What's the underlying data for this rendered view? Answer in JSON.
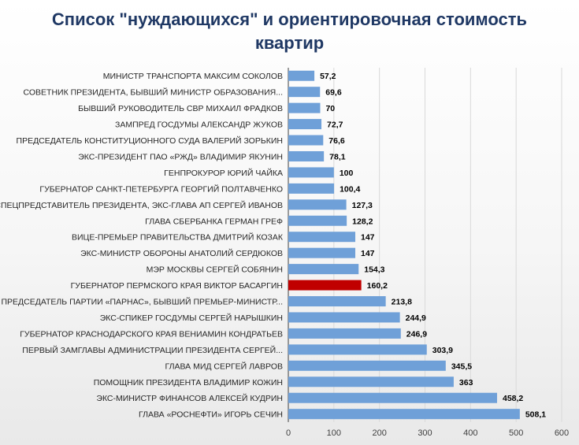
{
  "chart_data": {
    "type": "bar",
    "orientation": "horizontal",
    "title_lines": [
      "Список \"нуждающихся\" и ориентировочная стоимость",
      "квартир"
    ],
    "categories": [
      "МИНИСТР ТРАНСПОРТА МАКСИМ СОКОЛОВ",
      "СОВЕТНИК ПРЕЗИДЕНТА, БЫВШИЙ МИНИСТР ОБРАЗОВАНИЯ...",
      "БЫВШИЙ РУКОВОДИТЕЛЬ СВР МИХАИЛ ФРАДКОВ",
      "ЗАМПРЕД ГОСДУМЫ АЛЕКСАНДР ЖУКОВ",
      "ПРЕДСЕДАТЕЛЬ КОНСТИТУЦИОННОГО СУДА ВАЛЕРИЙ ЗОРЬКИН",
      "ЭКС-ПРЕЗИДЕНТ ПАО «РЖД» ВЛАДИМИР ЯКУНИН",
      "ГЕНПРОКУРОР ЮРИЙ ЧАЙКА",
      "ГУБЕРНАТОР САНКТ-ПЕТЕРБУРГА ГЕОРГИЙ ПОЛТАВЧЕНКО",
      "СПЕЦПРЕДСТАВИТЕЛЬ ПРЕЗИДЕНТА, ЭКС-ГЛАВА АП СЕРГЕЙ ИВАНОВ",
      "ГЛАВА СБЕРБАНКА ГЕРМАН ГРЕФ",
      "ВИЦЕ-ПРЕМЬЕР ПРАВИТЕЛЬСТВА ДМИТРИЙ КОЗАК",
      "ЭКС-МИНИСТР ОБОРОНЫ АНАТОЛИЙ СЕРДЮКОВ",
      "МЭР МОСКВЫ СЕРГЕЙ СОБЯНИН",
      "ГУБЕРНАТОР ПЕРМСКОГО КРАЯ ВИКТОР БАСАРГИН",
      "ПРЕДСЕДАТЕЛЬ ПАРТИИ «ПАРНАС», БЫВШИЙ ПРЕМЬЕР-МИНИСТР...",
      "ЭКС-СПИКЕР ГОСДУМЫ СЕРГЕЙ НАРЫШКИН",
      "ГУБЕРНАТОР КРАСНОДАРСКОГО КРАЯ ВЕНИАМИН КОНДРАТЬЕВ",
      "ПЕРВЫЙ ЗАМГЛАВЫ АДМИНИСТРАЦИИ ПРЕЗИДЕНТА СЕРГЕЙ...",
      "ГЛАВА МИД СЕРГЕЙ ЛАВРОВ",
      "ПОМОЩНИК ПРЕЗИДЕНТА ВЛАДИМИР КОЖИН",
      "ЭКС-МИНИСТР ФИНАНСОВ АЛЕКСЕЙ КУДРИН",
      "ГЛАВА «РОСНЕФТИ» ИГОРЬ СЕЧИН"
    ],
    "values": [
      57.2,
      69.6,
      70,
      72.7,
      76.6,
      78.1,
      100,
      100.4,
      127.3,
      128.2,
      147,
      147,
      154.3,
      160.2,
      213.8,
      244.9,
      246.9,
      303.9,
      345.5,
      363,
      458.2,
      508.1
    ],
    "value_labels": [
      "57,2",
      "69,6",
      "70",
      "72,7",
      "76,6",
      "78,1",
      "100",
      "100,4",
      "127,3",
      "128,2",
      "147",
      "147",
      "154,3",
      "160,2",
      "213,8",
      "244,9",
      "246,9",
      "303,9",
      "345,5",
      "363",
      "458,2",
      "508,1"
    ],
    "highlight_index": 13,
    "xlim": [
      0,
      600
    ],
    "x_ticks": [
      0,
      100,
      200,
      300,
      400,
      500,
      600
    ],
    "grid": "vertical",
    "colors": {
      "bar": "#6fa0d8",
      "highlight": "#c00000",
      "title": "#1f3864",
      "grid": "#d9d9d9"
    }
  }
}
